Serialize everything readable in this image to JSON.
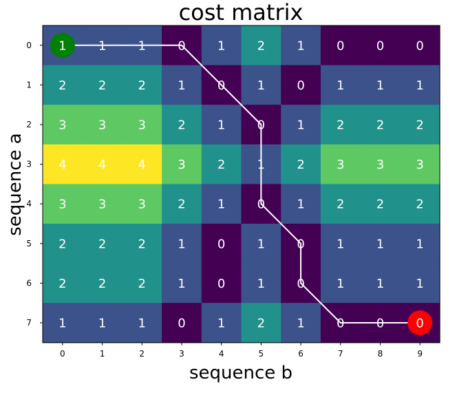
{
  "chart_data": {
    "type": "heatmap",
    "title": "cost matrix",
    "xlabel": "sequence b",
    "ylabel": "sequence a",
    "x_ticks": [
      "0",
      "1",
      "2",
      "3",
      "4",
      "5",
      "6",
      "7",
      "8",
      "9"
    ],
    "y_ticks": [
      "0",
      "1",
      "2",
      "3",
      "4",
      "5",
      "6",
      "7"
    ],
    "values": [
      [
        1,
        1,
        1,
        0,
        1,
        2,
        1,
        0,
        0,
        0
      ],
      [
        2,
        2,
        2,
        1,
        0,
        1,
        0,
        1,
        1,
        1
      ],
      [
        3,
        3,
        3,
        2,
        1,
        0,
        1,
        2,
        2,
        2
      ],
      [
        4,
        4,
        4,
        3,
        2,
        1,
        2,
        3,
        3,
        3
      ],
      [
        3,
        3,
        3,
        2,
        1,
        0,
        1,
        2,
        2,
        2
      ],
      [
        2,
        2,
        2,
        1,
        0,
        1,
        0,
        1,
        1,
        1
      ],
      [
        2,
        2,
        2,
        1,
        0,
        1,
        0,
        1,
        1,
        1
      ],
      [
        1,
        1,
        1,
        0,
        1,
        2,
        1,
        0,
        0,
        0
      ]
    ],
    "colormap": {
      "0": "#440154",
      "1": "#3b528b",
      "2": "#21918c",
      "3": "#5ec962",
      "4": "#fde725"
    },
    "path": [
      [
        0,
        0
      ],
      [
        0,
        1
      ],
      [
        0,
        2
      ],
      [
        0,
        3
      ],
      [
        1,
        4
      ],
      [
        2,
        5
      ],
      [
        3,
        5
      ],
      [
        4,
        5
      ],
      [
        5,
        6
      ],
      [
        6,
        6
      ],
      [
        7,
        7
      ],
      [
        7,
        8
      ],
      [
        7,
        9
      ]
    ],
    "path_color": "#ffffff",
    "start_marker": {
      "row": 0,
      "col": 0,
      "color": "#008000"
    },
    "end_marker": {
      "row": 7,
      "col": 9,
      "color": "#ff0000"
    },
    "grid": false
  }
}
